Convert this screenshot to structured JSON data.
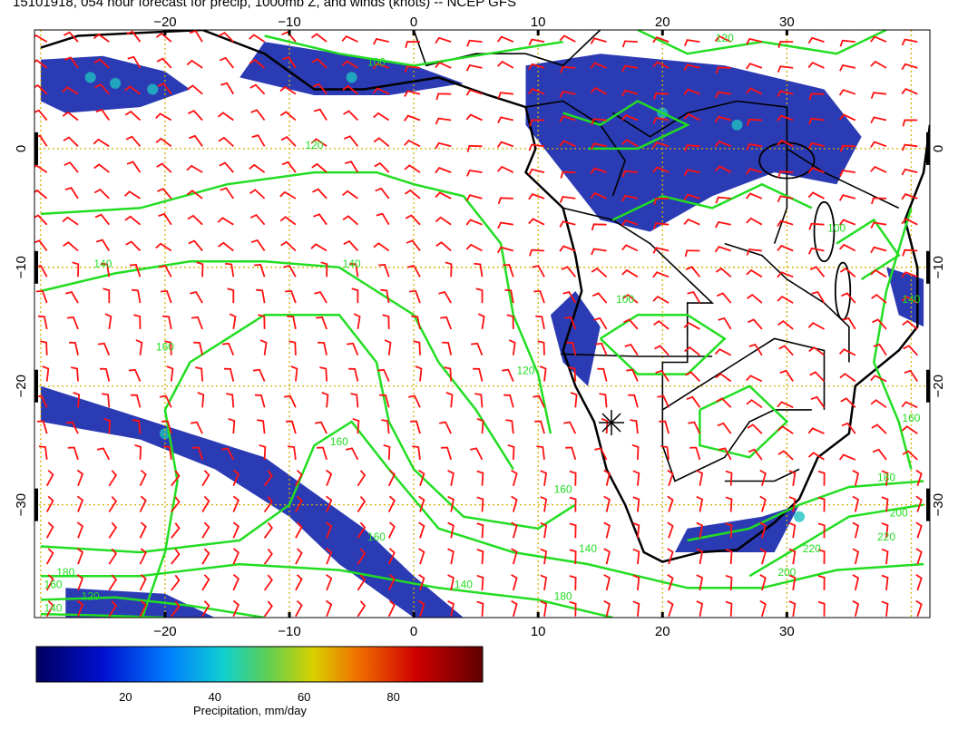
{
  "title": "15101918, 054 hour forecast for precip, 1000mb Z, and winds (knots) -- NCEP GFS",
  "map": {
    "lon_ticks": [
      "−20",
      "−10",
      "0",
      "10",
      "20",
      "30"
    ],
    "lon_values": [
      -20,
      -10,
      0,
      10,
      20,
      30
    ],
    "lat_ticks": [
      "0",
      "−10",
      "−20",
      "−30"
    ],
    "lat_values": [
      0,
      -10,
      -20,
      -30
    ],
    "lon_range": [
      -30.5,
      41.5
    ],
    "lat_range": [
      -39.5,
      10
    ],
    "contour_labels": [
      {
        "text": "120",
        "lon": -8,
        "lat": 0
      },
      {
        "text": "140",
        "lon": -25,
        "lat": -10
      },
      {
        "text": "140",
        "lon": -5,
        "lat": -10
      },
      {
        "text": "160",
        "lon": -20,
        "lat": -17
      },
      {
        "text": "120",
        "lon": 9,
        "lat": -19
      },
      {
        "text": "160",
        "lon": -6,
        "lat": -25
      },
      {
        "text": "160",
        "lon": 12,
        "lat": -29
      },
      {
        "text": "160",
        "lon": -3,
        "lat": -33
      },
      {
        "text": "140",
        "lon": 14,
        "lat": -34
      },
      {
        "text": "180",
        "lon": -28,
        "lat": -36
      },
      {
        "text": "160",
        "lon": -29,
        "lat": -37
      },
      {
        "text": "140",
        "lon": -29,
        "lat": -39
      },
      {
        "text": "120",
        "lon": -26,
        "lat": -38
      },
      {
        "text": "140",
        "lon": 4,
        "lat": -37
      },
      {
        "text": "180",
        "lon": 12,
        "lat": -38
      },
      {
        "text": "100",
        "lon": 17,
        "lat": -13
      },
      {
        "text": "100",
        "lon": 34,
        "lat": -7
      },
      {
        "text": "140",
        "lon": 40,
        "lat": -13
      },
      {
        "text": "160",
        "lon": 40,
        "lat": -23
      },
      {
        "text": "180",
        "lon": 38,
        "lat": -28
      },
      {
        "text": "200",
        "lon": 39,
        "lat": -31
      },
      {
        "text": "220",
        "lon": 38,
        "lat": -33
      },
      {
        "text": "220",
        "lon": 32,
        "lat": -34
      },
      {
        "text": "200",
        "lon": 30,
        "lat": -36
      },
      {
        "text": "100",
        "lon": -3,
        "lat": 7
      },
      {
        "text": "120",
        "lon": 25,
        "lat": 9
      }
    ],
    "colors": {
      "precip": "#2030b0",
      "contour": "#22dd22",
      "wind": "#ff1010",
      "coast": "#000000",
      "grid": "#d8b000"
    }
  },
  "colorbar": {
    "ticks": [
      "20",
      "40",
      "60",
      "80"
    ],
    "tick_values": [
      20,
      40,
      60,
      80
    ],
    "range": [
      0,
      100
    ],
    "label": "Precipitation, mm/day"
  }
}
